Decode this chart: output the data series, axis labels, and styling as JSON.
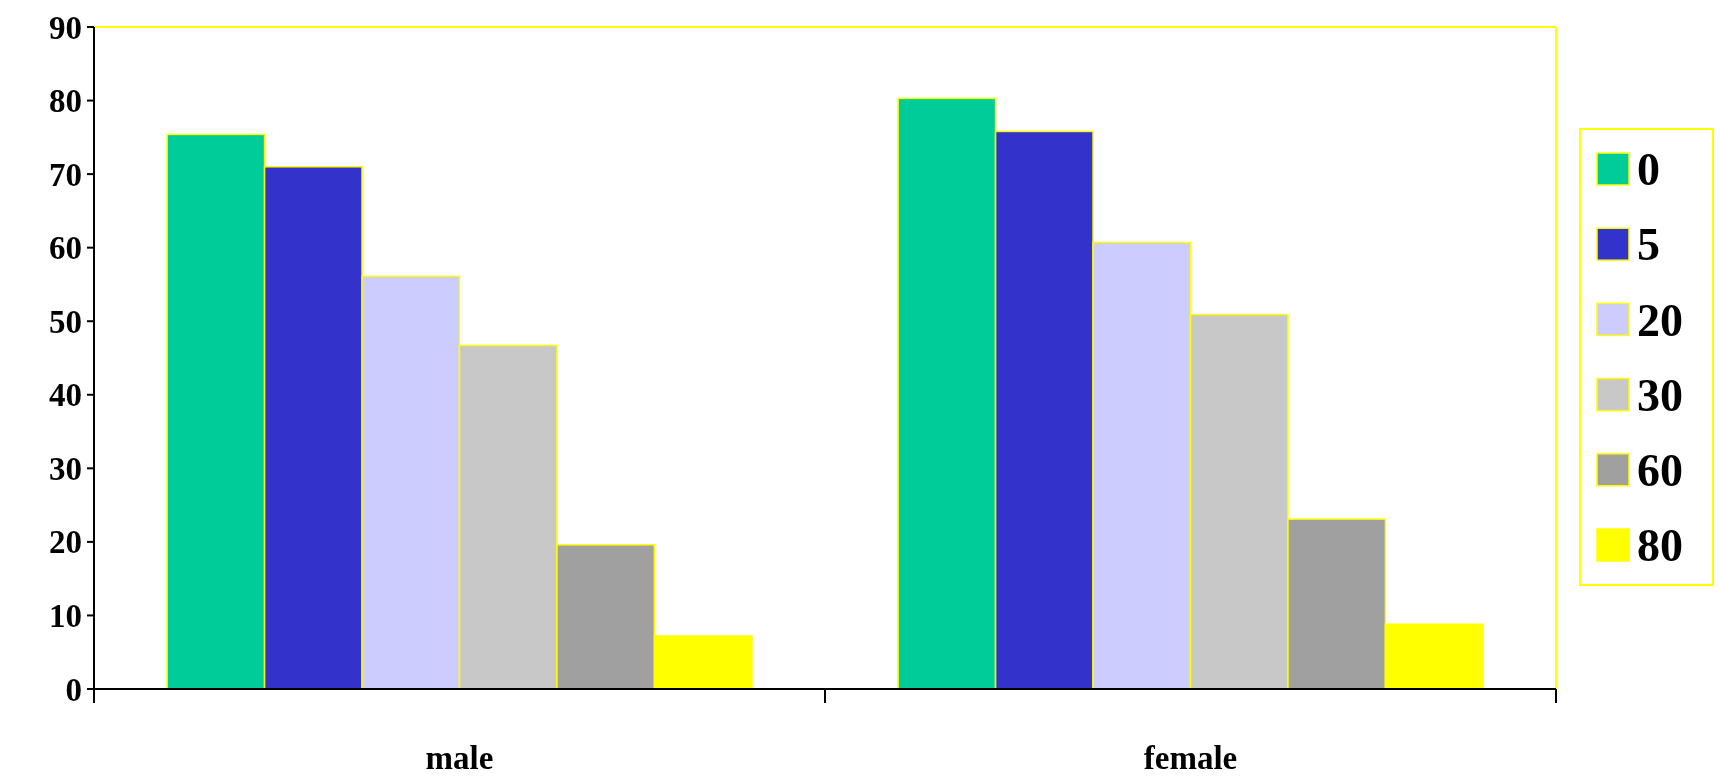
{
  "chart_data": {
    "type": "bar",
    "categories": [
      "male",
      "female"
    ],
    "series": [
      {
        "name": "0",
        "color": "#00cc99",
        "values": [
          75.4,
          80.3
        ]
      },
      {
        "name": "5",
        "color": "#3333cc",
        "values": [
          71.0,
          75.8
        ]
      },
      {
        "name": "20",
        "color": "#ccccff",
        "values": [
          56.1,
          60.7
        ]
      },
      {
        "name": "30",
        "color": "#c8c8c8",
        "values": [
          46.7,
          50.9
        ]
      },
      {
        "name": "60",
        "color": "#a0a0a0",
        "values": [
          19.6,
          23.1
        ]
      },
      {
        "name": "80",
        "color": "#ffff00",
        "values": [
          7.2,
          8.8
        ]
      }
    ],
    "ylim": [
      0,
      90
    ],
    "yticks": [
      0,
      10,
      20,
      30,
      40,
      50,
      60,
      70,
      80,
      90
    ],
    "grid": false,
    "legend": "right"
  }
}
